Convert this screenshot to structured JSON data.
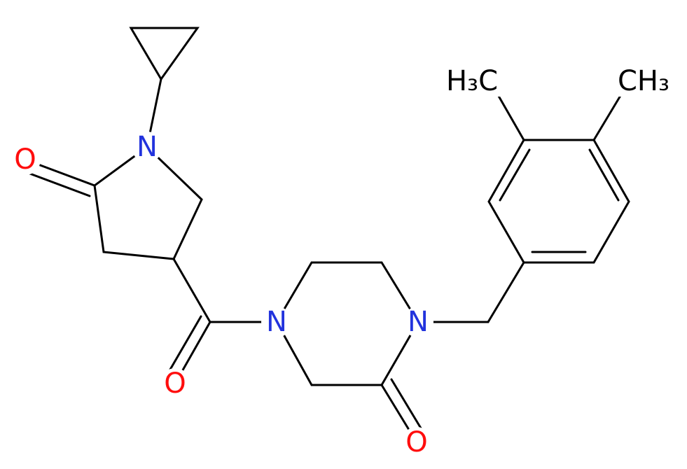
{
  "atoms": [
    {
      "label": "O"
    },
    {
      "label": "N"
    },
    {
      "label": "O"
    },
    {
      "label": "N"
    },
    {
      "label": "N"
    },
    {
      "label": "O"
    },
    {
      "label": "H₃C"
    },
    {
      "label": "CH₃"
    }
  ]
}
